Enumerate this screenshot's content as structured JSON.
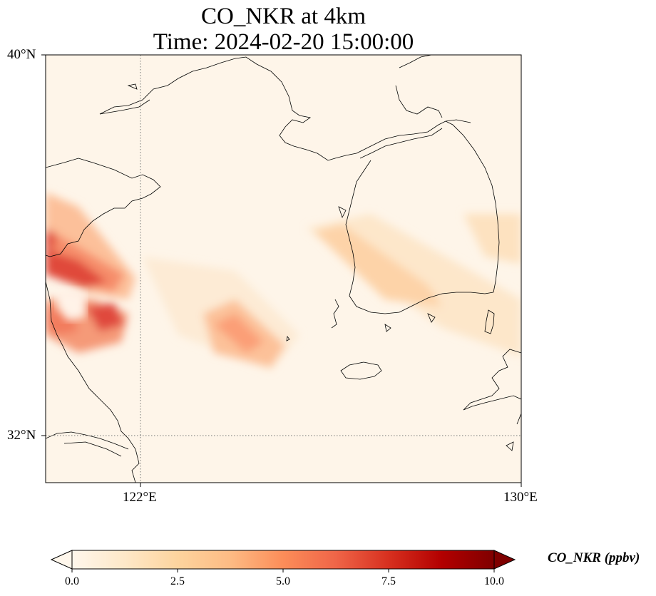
{
  "title": {
    "line1": "CO_NKR at 4km",
    "line2": "Time: 2024-02-20 15:00:00"
  },
  "axes": {
    "lat_labels": [
      "40°N",
      "32°N"
    ],
    "lon_labels": [
      "122°E",
      "130°E"
    ],
    "lat_range": [
      31,
      40
    ],
    "lon_range": [
      120,
      130
    ],
    "gridlines": {
      "lat": 32,
      "lon": 122,
      "style": "dotted"
    }
  },
  "colorbar": {
    "label": "CO_NKR (ppbv)",
    "ticks": [
      "0.0",
      "2.5",
      "5.0",
      "7.5",
      "10.0"
    ],
    "range": [
      0,
      10
    ],
    "colormap": "OrRd",
    "colors": [
      "#fff7ec",
      "#fee8c8",
      "#fdd49e",
      "#fdbb84",
      "#fc8d59",
      "#ef6548",
      "#d7301f",
      "#b30000",
      "#7f0000"
    ],
    "extend": "both"
  }
}
